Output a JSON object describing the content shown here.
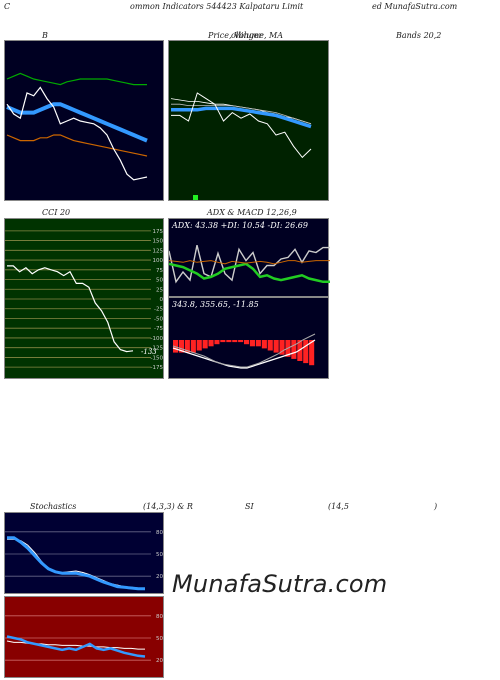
{
  "header": {
    "left": "C",
    "center": "ommon  Indicators 544423 Kalpataru  Limit",
    "right": "ed MunafaSutra.com"
  },
  "panel_titles": {
    "bollinger_left": "B",
    "bollinger_mid": "Price, Volume, MA",
    "bollinger_overlay": "ollinger",
    "bollinger_right": "Bands 20,2",
    "cci": "CCI 20",
    "adx_macd": "ADX  & MACD 12,26,9",
    "stoch_left": "Stochastics",
    "stoch_mid": "(14,3,3) & R",
    "stoch_rsi": "SI",
    "stoch_rsi_param": "(14,5",
    "stoch_close": ")"
  },
  "adx_label": "ADX: 43.38  +DI: 10.54  -DI: 26.69",
  "macd_label": "343.8,  355.65,  -11.85",
  "cci_last_label": "-133",
  "watermark": "MunafaSutra.com",
  "colors": {
    "bollinger_bg": "#000022",
    "price_bg": "#002200",
    "cci_bg": "#003300",
    "adx_bg": "#000022",
    "stoch_bg": "#000033",
    "rsi_bg": "#880000",
    "blue": "#3399ff",
    "green": "#22cc22",
    "orange": "#cc6600"
  },
  "chart_data": [
    {
      "type": "line",
      "name": "bollinger",
      "series": [
        {
          "values": [
            80,
            82,
            84,
            82,
            80,
            79,
            78,
            77,
            76,
            78,
            79,
            80,
            80,
            80,
            80,
            80,
            79,
            78,
            77,
            76,
            76,
            76
          ]
        },
        {
          "values": [
            60,
            58,
            56,
            56,
            56,
            58,
            60,
            62,
            62,
            60,
            58,
            56,
            54,
            52,
            50,
            48,
            46,
            44,
            42,
            40,
            38,
            36
          ]
        },
        {
          "values": [
            40,
            38,
            36,
            36,
            36,
            38,
            38,
            40,
            40,
            38,
            36,
            35,
            34,
            33,
            32,
            31,
            30,
            29,
            28,
            27,
            26,
            25
          ]
        },
        {
          "values": [
            62,
            55,
            52,
            70,
            68,
            74,
            66,
            60,
            48,
            50,
            52,
            50,
            49,
            48,
            45,
            40,
            30,
            22,
            12,
            8,
            9,
            10
          ]
        }
      ]
    },
    {
      "type": "line",
      "name": "price-ma",
      "series": [
        {
          "values": [
            66,
            65,
            64,
            64,
            63,
            62,
            62,
            61,
            60,
            59,
            58,
            56,
            55,
            53,
            52,
            50,
            48
          ]
        },
        {
          "values": [
            62,
            62,
            61,
            61,
            61,
            61,
            61,
            61,
            60,
            59,
            58,
            57,
            56,
            54,
            52,
            50,
            48
          ]
        },
        {
          "values": [
            58,
            58,
            58,
            58,
            59,
            59,
            59,
            59,
            58,
            57,
            56,
            55,
            54,
            52,
            50,
            48,
            46
          ]
        },
        {
          "values": [
            54,
            54,
            50,
            70,
            66,
            62,
            50,
            56,
            52,
            55,
            50,
            48,
            40,
            42,
            32,
            24,
            30
          ]
        }
      ]
    },
    {
      "type": "line",
      "name": "cci",
      "yticks": [
        175,
        150,
        125,
        100,
        75,
        50,
        25,
        0,
        -25,
        -50,
        -75,
        -100,
        -125,
        -150,
        -175
      ],
      "ylim": [
        -190,
        190
      ],
      "series": [
        {
          "values": [
            85,
            85,
            70,
            80,
            65,
            75,
            80,
            75,
            70,
            60,
            70,
            40,
            40,
            30,
            -10,
            -30,
            -60,
            -110,
            -130,
            -135,
            -133
          ]
        }
      ]
    },
    {
      "type": "line",
      "name": "adx",
      "series": [
        {
          "values": [
            58,
            20,
            32,
            22,
            65,
            30,
            26,
            55,
            30,
            22,
            60,
            46,
            56,
            30,
            40,
            40,
            48,
            50,
            60,
            44,
            58,
            56,
            62,
            62
          ]
        },
        {
          "values": [
            42,
            40,
            38,
            34,
            30,
            24,
            26,
            30,
            36,
            38,
            40,
            42,
            36,
            26,
            28,
            24,
            22,
            24,
            26,
            28,
            24,
            22,
            20,
            20
          ]
        },
        {
          "values": [
            46,
            45,
            44,
            46,
            44,
            45,
            46,
            44,
            42,
            45,
            44,
            43,
            44,
            45,
            44,
            42,
            44,
            46,
            46,
            44,
            45,
            46,
            46,
            46
          ]
        }
      ]
    },
    {
      "type": "bar",
      "name": "macd-histogram",
      "values": [
        -6,
        -6,
        -6,
        -6,
        -5,
        -4,
        -3,
        -2,
        -1,
        -1,
        -1,
        -1,
        -2,
        -3,
        -3,
        -4,
        -5,
        -6,
        -7,
        -8,
        -9,
        -10,
        -11,
        -12
      ]
    },
    {
      "type": "line",
      "name": "macd",
      "series": [
        {
          "values": [
            14,
            16,
            18,
            20,
            22,
            24,
            26,
            28,
            30,
            32,
            33,
            34,
            34,
            32,
            30,
            28,
            26,
            24,
            22,
            20,
            18,
            14,
            10,
            6
          ]
        },
        {
          "values": [
            12,
            14,
            16,
            18,
            20,
            22,
            25,
            28,
            30,
            31,
            32,
            33,
            33,
            31,
            29,
            26,
            23,
            20,
            16,
            13,
            10,
            6,
            3,
            0
          ]
        }
      ]
    },
    {
      "type": "line",
      "name": "stochastics",
      "yticks": [
        80,
        50,
        20
      ],
      "ylim": [
        0,
        100
      ],
      "series": [
        {
          "values": [
            70,
            70,
            68,
            62,
            52,
            40,
            30,
            26,
            25,
            26,
            27,
            25,
            22,
            18,
            14,
            10,
            8,
            6,
            5,
            4,
            4
          ]
        },
        {
          "values": [
            72,
            72,
            66,
            58,
            48,
            38,
            30,
            26,
            24,
            24,
            24,
            22,
            20,
            16,
            12,
            9,
            6,
            5,
            4,
            3,
            3
          ]
        }
      ]
    },
    {
      "type": "line",
      "name": "rsi",
      "yticks": [
        80,
        50,
        20
      ],
      "ylim": [
        0,
        100
      ],
      "series": [
        {
          "values": [
            46,
            44,
            44,
            43,
            42,
            42,
            41,
            41,
            40,
            40,
            40,
            39,
            39,
            38,
            38,
            37,
            37,
            36,
            36,
            35,
            35
          ]
        },
        {
          "values": [
            52,
            50,
            48,
            44,
            42,
            40,
            38,
            36,
            34,
            36,
            34,
            38,
            42,
            36,
            34,
            36,
            33,
            30,
            28,
            26,
            25
          ]
        }
      ]
    }
  ]
}
